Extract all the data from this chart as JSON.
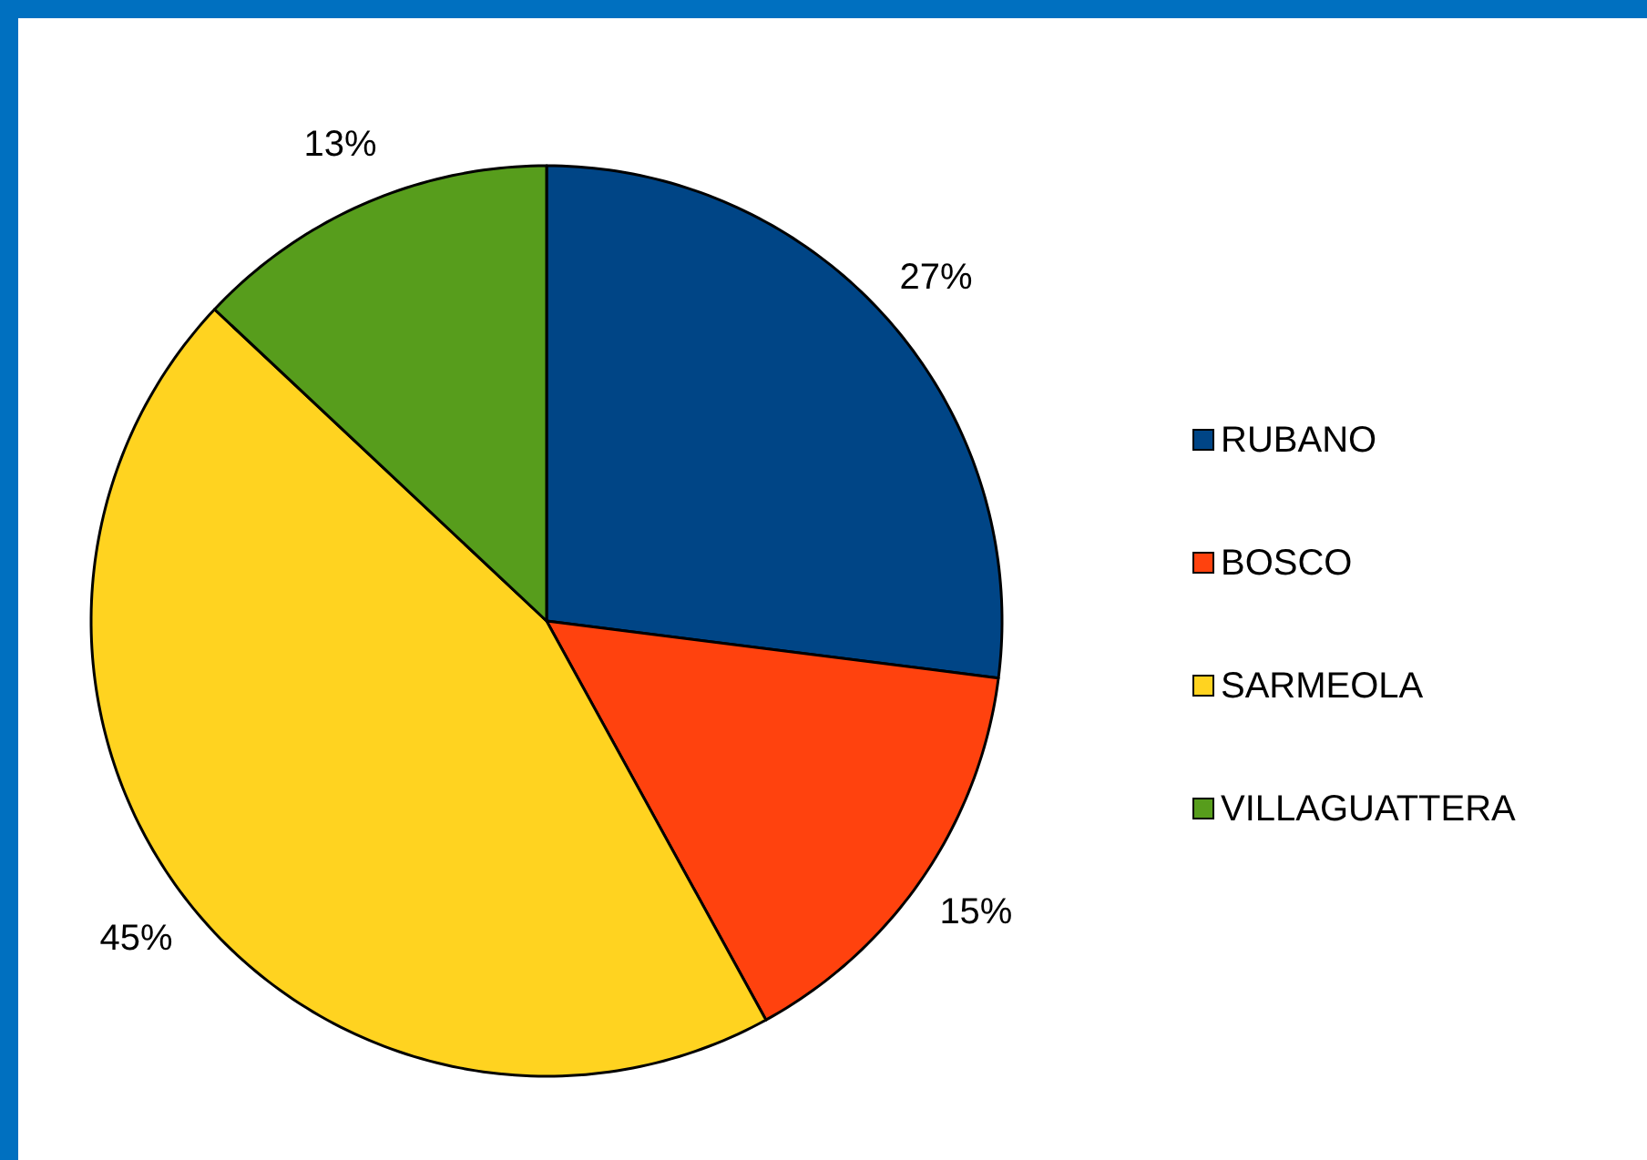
{
  "chart_data": {
    "type": "pie",
    "categories": [
      "RUBANO",
      "BOSCO",
      "SARMEOLA",
      "VILLAGUATTERA"
    ],
    "values": [
      27,
      15,
      45,
      13
    ],
    "value_labels": [
      "27%",
      "15%",
      "45%",
      "13%"
    ],
    "colors": [
      "#004586",
      "#ff420e",
      "#ffd320",
      "#579d1c"
    ],
    "legend": "right"
  }
}
